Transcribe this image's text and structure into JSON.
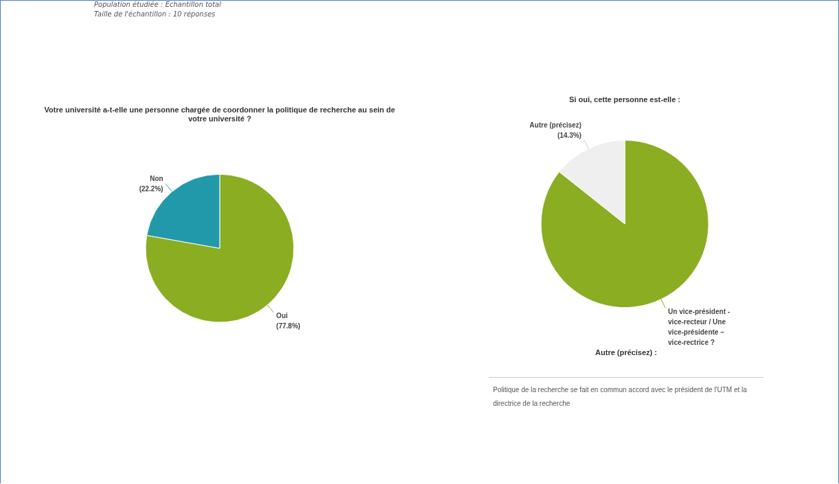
{
  "chart_data": [
    {
      "type": "pie",
      "title": "Votre université a-t-elle une personne chargée de coordonner la politique de recherche au sein de votre université ?",
      "annotations": [
        "Population étudiée : Echantillon total",
        "Taille de l'échantillon : 10 réponses"
      ],
      "categories": [
        "Oui",
        "Non"
      ],
      "values": [
        77.8,
        22.2
      ],
      "value_labels": [
        "(77.8%)",
        "(22.2%)"
      ],
      "colors": [
        "#8aad22",
        "#2299aa"
      ]
    },
    {
      "type": "pie",
      "title": "Si oui, cette personne est-elle :",
      "categories": [
        "Un vice-président - vice-recteur / Une vice-présidente – vice-rectrice ?",
        "Autre (précisez)"
      ],
      "values": [
        85.7,
        14.3
      ],
      "value_labels": [
        null,
        "(14.3%)"
      ],
      "colors": [
        "#8aad22",
        "#efefef"
      ]
    },
    {
      "type": "other",
      "title": "Autre (précisez) :",
      "annotations": [
        "Politique de la recherche se fait en commun accord avec le président de l'UTM et la directrice de la recherche"
      ]
    }
  ]
}
